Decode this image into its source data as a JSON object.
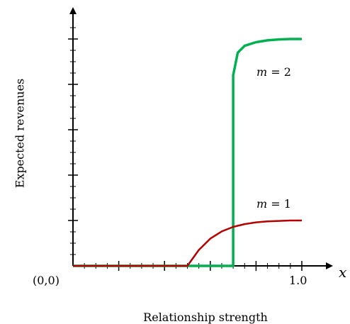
{
  "chart_data": {
    "type": "line",
    "title": "",
    "xlabel": "Relationship strength",
    "ylabel": "Expected revenues",
    "x_axis_symbol": "x",
    "origin_label": "(0,0)",
    "x_tick_labels": [
      {
        "x": 1.0,
        "label": "1.0"
      }
    ],
    "xlim": [
      0,
      1.05
    ],
    "ylim": [
      0,
      5.5
    ],
    "grid": false,
    "legend": "none",
    "series": [
      {
        "name": "m = 1",
        "color": "#b30000",
        "x": [
          0.0,
          0.3,
          0.49,
          0.5,
          0.55,
          0.6,
          0.65,
          0.7,
          0.75,
          0.8,
          0.85,
          0.9,
          0.95,
          1.0
        ],
        "y": [
          0.0,
          0.0,
          0.0,
          0.0,
          0.35,
          0.6,
          0.76,
          0.86,
          0.92,
          0.96,
          0.98,
          0.99,
          1.0,
          1.0
        ]
      },
      {
        "name": "m = 2",
        "color": "#00b050",
        "x": [
          0.0,
          0.5,
          0.7,
          0.7,
          0.72,
          0.75,
          0.8,
          0.85,
          0.9,
          0.95,
          1.0
        ],
        "y": [
          0.0,
          0.0,
          0.0,
          4.2,
          4.7,
          4.85,
          4.93,
          4.97,
          4.99,
          5.0,
          5.0
        ]
      }
    ],
    "colors": {
      "axis": "#000000",
      "m1": "#b30000",
      "m2": "#00b050"
    }
  }
}
